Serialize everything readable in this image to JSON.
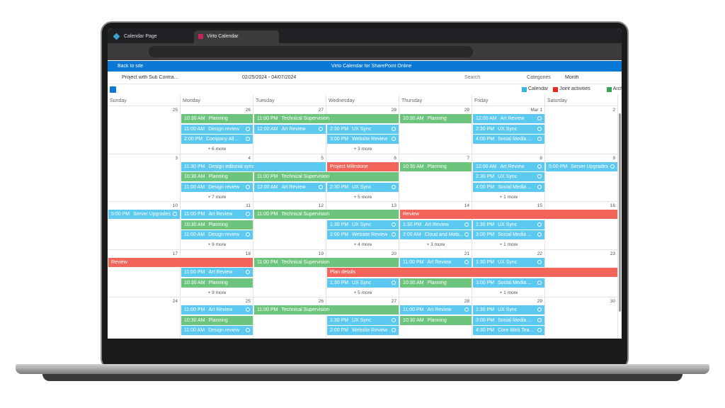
{
  "browser": {
    "tabs": [
      "Calendar Page",
      "Virto Calendar"
    ]
  },
  "app": {
    "back": "Back to site",
    "title": "Virto Calendar for SharePoint Online"
  },
  "toolbar": {
    "view_name": "Project with Sub Contra...",
    "range": "02/25/2024 - 04/07/2024",
    "search": "Search",
    "categories": "Categories",
    "mode": "Month"
  },
  "legend": [
    {
      "label": "Calendar",
      "color": "#33b5e5"
    },
    {
      "label": "Joint activities",
      "color": "#e8281e"
    },
    {
      "label": "Architect",
      "color": "#34a853"
    }
  ],
  "weekdays": [
    "Sunday",
    "Monday",
    "Tuesday",
    "Wednesday",
    "Thursday",
    "Friday",
    "Saturday"
  ],
  "weeks": [
    {
      "days": [
        "25",
        "26",
        "27",
        "28",
        "29",
        "Mar 1",
        "2"
      ],
      "rows": [
        [
          {
            "day": 1,
            "span": 1,
            "time": "10:30 AM",
            "title": "Planning",
            "color": "#6dc47d",
            "recurring": false
          },
          {
            "day": 2,
            "span": 2,
            "time": "11:00 PM",
            "title": "Technical Supervision",
            "color": "#6dc47d",
            "recurring": false
          },
          {
            "day": 4,
            "span": 1,
            "time": "10:30 AM",
            "title": "Planning",
            "color": "#6dc47d",
            "recurring": false
          },
          {
            "day": 5,
            "span": 1,
            "time": "12:00 AM",
            "title": "Art Review",
            "color": "#5ccaf0",
            "recurring": true
          }
        ],
        [
          {
            "day": 1,
            "span": 1,
            "time": "11:00 AM",
            "title": "Design review",
            "color": "#5ccaf0",
            "recurring": true
          },
          {
            "day": 2,
            "span": 1,
            "time": "12:00 AM",
            "title": "Art Review",
            "color": "#5ccaf0",
            "recurring": true
          },
          {
            "day": 3,
            "span": 1,
            "time": "2:30 PM",
            "title": "UX Sync",
            "color": "#5ccaf0",
            "recurring": true
          },
          {
            "day": 5,
            "span": 1,
            "time": "2:30 PM",
            "title": "UX Sync",
            "color": "#5ccaf0",
            "recurring": true
          }
        ],
        [
          {
            "day": 1,
            "span": 1,
            "time": "2:00 PM",
            "title": "Company All ...",
            "color": "#5ccaf0",
            "recurring": true
          },
          {
            "day": 3,
            "span": 1,
            "time": "3:00 PM",
            "title": "Website Review",
            "color": "#5ccaf0",
            "recurring": true
          },
          {
            "day": 5,
            "span": 1,
            "time": "4:00 PM",
            "title": "Social Media ...",
            "color": "#5ccaf0",
            "recurring": true
          }
        ]
      ],
      "more": [
        null,
        "+ 6 more",
        null,
        "+ 3 more",
        null,
        null,
        null
      ]
    },
    {
      "days": [
        "3",
        "4",
        "5",
        "6",
        "7",
        "8",
        "9"
      ],
      "rows": [
        [
          {
            "day": 1,
            "span": 2,
            "time": "11:30 PM",
            "title": "Design editorial sync",
            "color": "#5ccaf0",
            "recurring": false
          },
          {
            "day": 3,
            "span": 1,
            "time": null,
            "title": "Project Milestone",
            "color": "#f3655b",
            "recurring": false
          },
          {
            "day": 4,
            "span": 1,
            "time": "10:30 AM",
            "title": "Planning",
            "color": "#6dc47d",
            "recurring": false
          },
          {
            "day": 5,
            "span": 1,
            "time": "12:00 AM",
            "title": "Art Review",
            "color": "#5ccaf0",
            "recurring": true
          },
          {
            "day": 6,
            "span": 1,
            "time": "5:00 PM",
            "title": "Server Upgrades",
            "color": "#5ccaf0",
            "recurring": true
          }
        ],
        [
          {
            "day": 1,
            "span": 1,
            "time": "10:30 AM",
            "title": "Planning",
            "color": "#6dc47d",
            "recurring": false
          },
          {
            "day": 2,
            "span": 2,
            "time": "11:00 PM",
            "title": "Technical Supervision",
            "color": "#6dc47d",
            "recurring": false
          },
          {
            "day": 5,
            "span": 1,
            "time": "2:30 PM",
            "title": "UX Sync",
            "color": "#5ccaf0",
            "recurring": true
          }
        ],
        [
          {
            "day": 1,
            "span": 1,
            "time": "11:00 AM",
            "title": "Design review",
            "color": "#5ccaf0",
            "recurring": true
          },
          {
            "day": 2,
            "span": 1,
            "time": "12:00 AM",
            "title": "Art Review",
            "color": "#5ccaf0",
            "recurring": true
          },
          {
            "day": 3,
            "span": 1,
            "time": "2:30 PM",
            "title": "UX Sync",
            "color": "#5ccaf0",
            "recurring": true
          },
          {
            "day": 5,
            "span": 1,
            "time": "4:00 PM",
            "title": "Social Media ...",
            "color": "#5ccaf0",
            "recurring": true
          }
        ]
      ],
      "more": [
        null,
        "+ 7 more",
        null,
        "+ 5 more",
        null,
        "+ 1 more",
        null
      ]
    },
    {
      "days": [
        "10",
        "11",
        "12",
        "13",
        "14",
        "15",
        "16"
      ],
      "rows": [
        [
          {
            "day": 0,
            "span": 1,
            "time": "5:00 PM",
            "title": "Server Upgrades",
            "color": "#5ccaf0",
            "recurring": true
          },
          {
            "day": 1,
            "span": 1,
            "time": "11:00 PM",
            "title": "Art Review",
            "color": "#5ccaf0",
            "recurring": true
          },
          {
            "day": 2,
            "span": 2,
            "time": "11:00 PM",
            "title": "Technical Supervision",
            "color": "#6dc47d",
            "recurring": false
          },
          {
            "day": 4,
            "span": 3,
            "time": null,
            "title": "Review",
            "color": "#f3655b",
            "recurring": false
          }
        ],
        [
          {
            "day": 1,
            "span": 1,
            "time": "10:30 AM",
            "title": "Planning",
            "color": "#6dc47d",
            "recurring": false
          },
          {
            "day": 3,
            "span": 1,
            "time": "1:30 PM",
            "title": "UX Sync",
            "color": "#5ccaf0",
            "recurring": true
          },
          {
            "day": 4,
            "span": 1,
            "time": "1:30 PM",
            "title": "Art Review",
            "color": "#5ccaf0",
            "recurring": true
          },
          {
            "day": 5,
            "span": 1,
            "time": "1:30 PM",
            "title": "UX Sync",
            "color": "#5ccaf0",
            "recurring": true
          }
        ],
        [
          {
            "day": 1,
            "span": 1,
            "time": "11:00 AM",
            "title": "Design review",
            "color": "#5ccaf0",
            "recurring": true
          },
          {
            "day": 3,
            "span": 1,
            "time": "2:00 PM",
            "title": "Website Review",
            "color": "#5ccaf0",
            "recurring": true
          },
          {
            "day": 4,
            "span": 1,
            "time": "2:00 AM",
            "title": "Cloud and Mobi...",
            "color": "#5ccaf0",
            "recurring": true
          },
          {
            "day": 5,
            "span": 1,
            "time": "3:00 PM",
            "title": "Social Media ...",
            "color": "#5ccaf0",
            "recurring": true
          }
        ]
      ],
      "more": [
        null,
        "+ 9 more",
        null,
        "+ 4 more",
        "+ 3 more",
        "+ 1 more",
        null
      ]
    },
    {
      "days": [
        "17",
        "18",
        "19",
        "20",
        "21",
        "22",
        "23"
      ],
      "rows": [
        [
          {
            "day": 0,
            "span": 2,
            "time": null,
            "title": "Review",
            "color": "#f3655b",
            "recurring": false
          },
          {
            "day": 2,
            "span": 2,
            "time": "11:00 PM",
            "title": "Technical Supervision",
            "color": "#6dc47d",
            "recurring": false
          },
          {
            "day": 4,
            "span": 1,
            "time": "11:00 PM",
            "title": "Art Review",
            "color": "#5ccaf0",
            "recurring": true
          },
          {
            "day": 5,
            "span": 1,
            "time": "1:30 PM",
            "title": "UX Sync",
            "color": "#5ccaf0",
            "recurring": true
          }
        ],
        [
          {
            "day": 1,
            "span": 1,
            "time": "11:00 PM",
            "title": "Art Review",
            "color": "#5ccaf0",
            "recurring": true
          },
          {
            "day": 3,
            "span": 4,
            "time": null,
            "title": "Plan details",
            "color": "#f3655b",
            "recurring": false
          }
        ],
        [
          {
            "day": 1,
            "span": 1,
            "time": "10:30 AM",
            "title": "Planning",
            "color": "#6dc47d",
            "recurring": false
          },
          {
            "day": 3,
            "span": 1,
            "time": "1:30 PM",
            "title": "UX Sync",
            "color": "#5ccaf0",
            "recurring": true
          },
          {
            "day": 4,
            "span": 1,
            "time": "10:30 AM",
            "title": "Planning",
            "color": "#6dc47d",
            "recurring": false
          },
          {
            "day": 5,
            "span": 1,
            "time": "3:00 PM",
            "title": "Social Media ...",
            "color": "#5ccaf0",
            "recurring": true
          }
        ]
      ],
      "more": [
        null,
        "+ 9 more",
        null,
        "+ 5 more",
        null,
        "+ 1 more",
        null
      ]
    },
    {
      "days": [
        "24",
        "25",
        "26",
        "27",
        "28",
        "29",
        "30"
      ],
      "rows": [
        [
          {
            "day": 1,
            "span": 1,
            "time": "11:00 PM",
            "title": "Art Review",
            "color": "#5ccaf0",
            "recurring": true
          },
          {
            "day": 2,
            "span": 2,
            "time": "11:00 PM",
            "title": "Technical Supervision",
            "color": "#6dc47d",
            "recurring": false
          },
          {
            "day": 4,
            "span": 1,
            "time": "11:00 PM",
            "title": "Art Review",
            "color": "#5ccaf0",
            "recurring": true
          },
          {
            "day": 5,
            "span": 1,
            "time": "1:30 PM",
            "title": "UX Sync",
            "color": "#5ccaf0",
            "recurring": true
          }
        ],
        [
          {
            "day": 1,
            "span": 1,
            "time": "10:30 AM",
            "title": "Planning",
            "color": "#6dc47d",
            "recurring": false
          },
          {
            "day": 3,
            "span": 1,
            "time": "1:30 PM",
            "title": "UX Sync",
            "color": "#5ccaf0",
            "recurring": true
          },
          {
            "day": 4,
            "span": 1,
            "time": "10:30 AM",
            "title": "Planning",
            "color": "#6dc47d",
            "recurring": false
          },
          {
            "day": 5,
            "span": 1,
            "time": "3:00 PM",
            "title": "Social Media ...",
            "color": "#5ccaf0",
            "recurring": true
          }
        ],
        [
          {
            "day": 1,
            "span": 1,
            "time": "11:00 AM",
            "title": "Design review",
            "color": "#5ccaf0",
            "recurring": true
          },
          {
            "day": 3,
            "span": 1,
            "time": "2:00 PM",
            "title": "Website Review",
            "color": "#5ccaf0",
            "recurring": true
          },
          {
            "day": 5,
            "span": 1,
            "time": "4:30 PM",
            "title": "Core Web Tea...",
            "color": "#5ccaf0",
            "recurring": true
          }
        ]
      ],
      "more": [
        null,
        null,
        null,
        null,
        null,
        null,
        null
      ]
    }
  ]
}
